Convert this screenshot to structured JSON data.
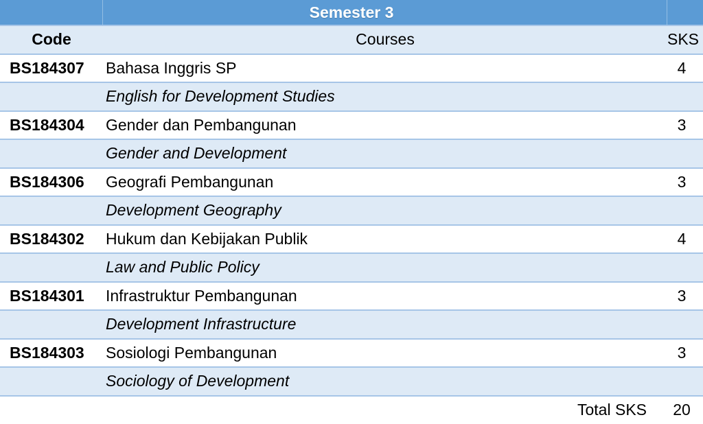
{
  "table": {
    "title": "Semester 3",
    "columns": {
      "code": "Code",
      "courses": "Courses",
      "sks": "SKS"
    },
    "courses": [
      {
        "code": "BS184307",
        "name_id": "Bahasa Inggris SP",
        "name_en": "English for Development Studies",
        "sks": "4"
      },
      {
        "code": "BS184304",
        "name_id": "Gender dan Pembangunan",
        "name_en": "Gender and Development",
        "sks": "3"
      },
      {
        "code": "BS184306",
        "name_id": "Geografi Pembangunan",
        "name_en": "Development Geography",
        "sks": "3"
      },
      {
        "code": "BS184302",
        "name_id": "Hukum dan Kebijakan Publik",
        "name_en": "Law and Public Policy",
        "sks": "4"
      },
      {
        "code": "BS184301",
        "name_id": "Infrastruktur Pembangunan",
        "name_en": "Development Infrastructure",
        "sks": "3"
      },
      {
        "code": "BS184303",
        "name_id": "Sosiologi Pembangunan",
        "name_en": "Sociology of Development",
        "sks": "3"
      }
    ],
    "total_label": "Total SKS",
    "total_sks": "20"
  },
  "colors": {
    "title_bar_blue": "#5B9BD5",
    "band_light_blue": "#DEEAF6",
    "row_border_blue": "#A6C5E7",
    "title_text": "#FFFFFF",
    "body_text": "#000000"
  }
}
